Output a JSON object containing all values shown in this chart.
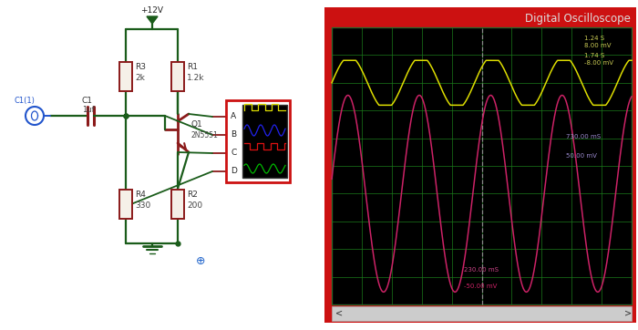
{
  "bg_color": "#ffffff",
  "circuit_color": "#1a5c1a",
  "resistor_color": "#8b1a1a",
  "transistor_color": "#8b1a1a",
  "signal_color": "#2255cc",
  "osc_bg": "#000000",
  "osc_border": "#cc1111",
  "osc_title": "Digital Oscilloscope",
  "osc_grid_color": "#1a7a1a",
  "osc_yellow": "#dddd00",
  "osc_pink": "#cc2266",
  "osc_cursor": "#888888",
  "ann_yellow": "#cccc55",
  "ann_purple": "#9988cc",
  "ann_pink": "#cc4488",
  "scrollbar_color": "#bbbbbb",
  "resistor_fill": "#f5f0e8",
  "yellow_ann1": "1.24 S",
  "yellow_ann2": "8.00 mV",
  "yellow_ann3": "1.74 S",
  "yellow_ann4": "-8.00 mV",
  "purple_ann1": "730.00 mS",
  "purple_ann2": "50.00 mV",
  "pink_ann1": "230.00 mS",
  "pink_ann2": "-50.00 mV",
  "mini_labels": [
    "A",
    "B",
    "C",
    "D"
  ],
  "crosshair_color": "#2266cc"
}
